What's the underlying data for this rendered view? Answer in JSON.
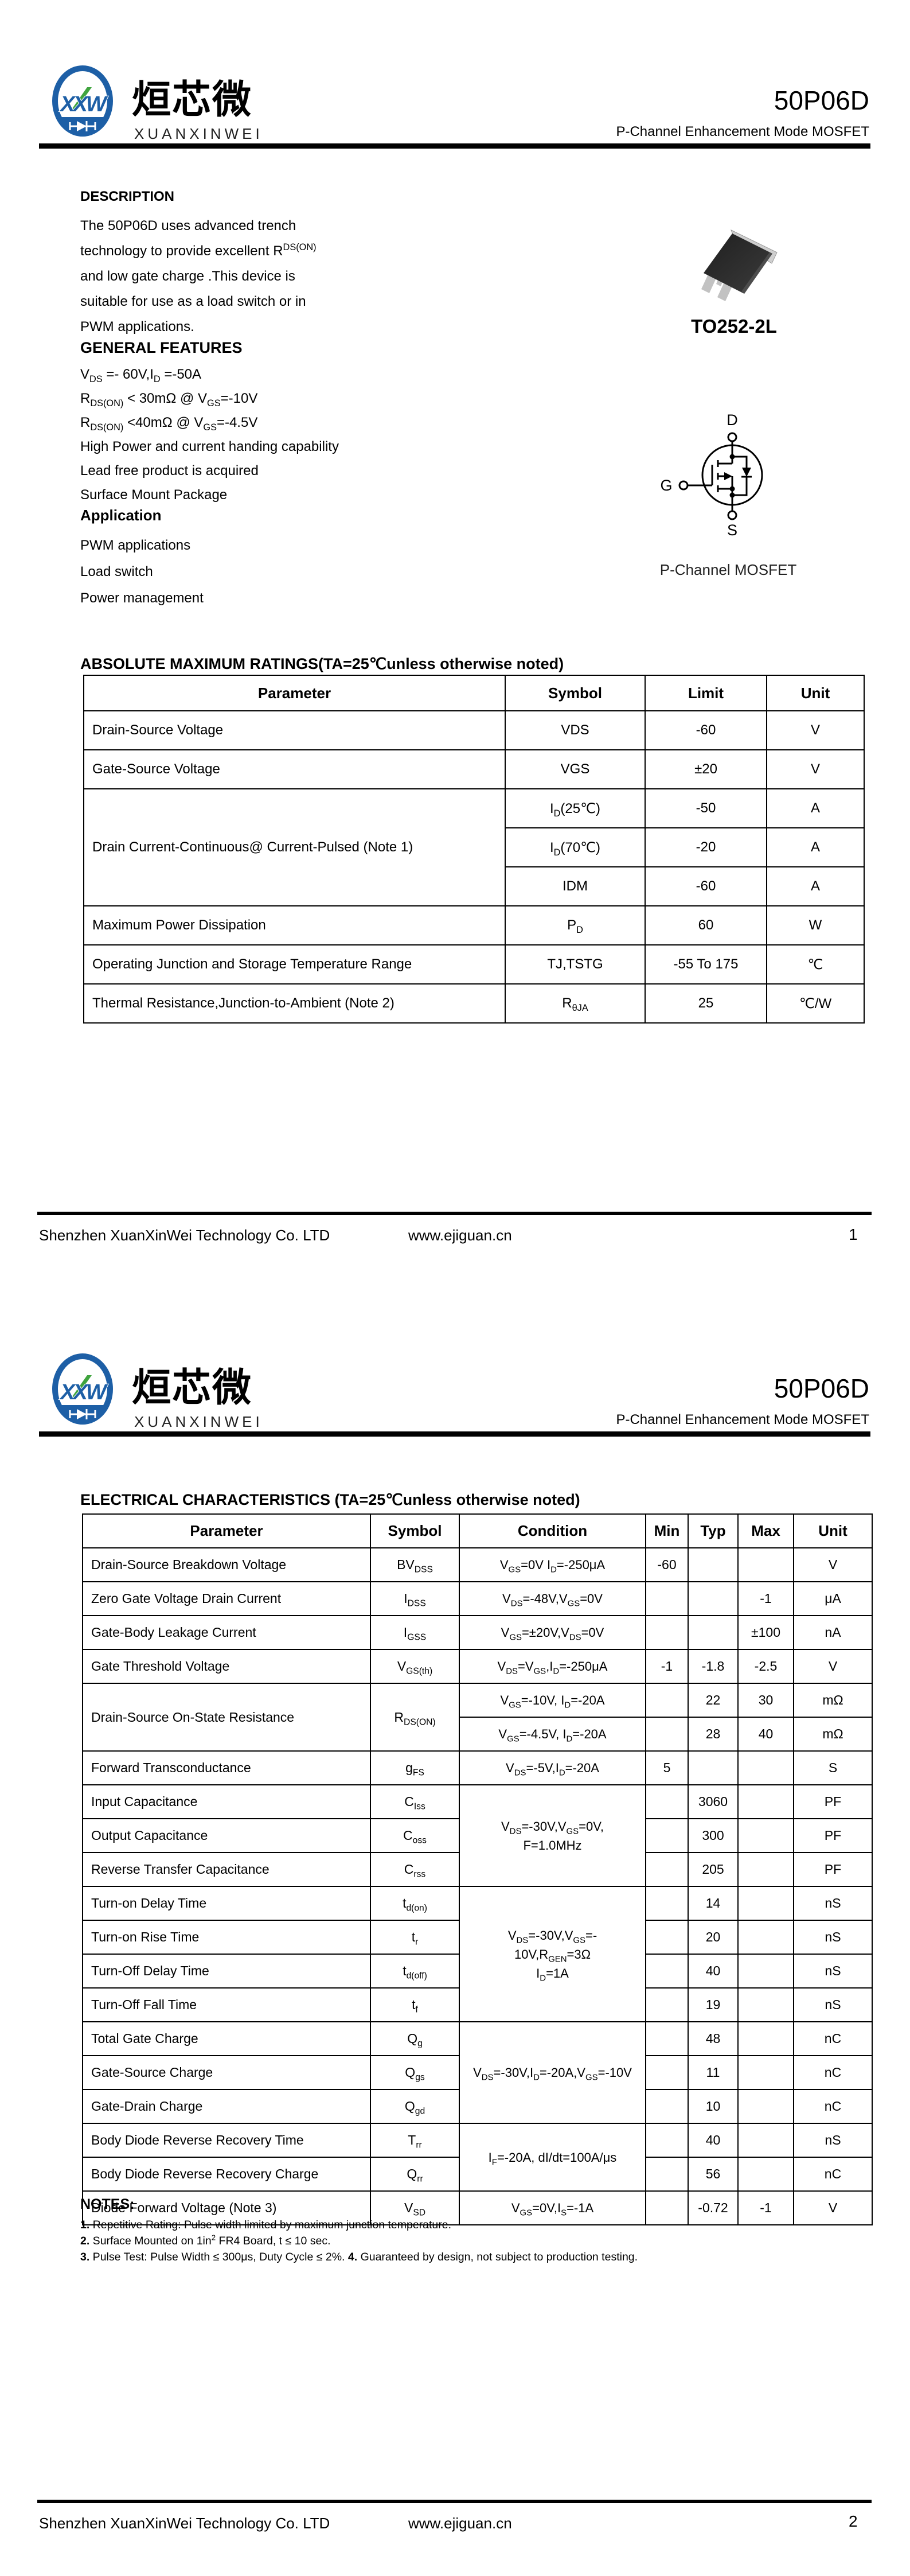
{
  "colors": {
    "logo_blue": "#1d5fa6",
    "logo_green": "#3fa43e",
    "text_black": "#000000"
  },
  "brand": {
    "logo_monogram": "XXW",
    "name_cn": "烜芯微",
    "name_en": "XUANXINWEI"
  },
  "doc": {
    "part_number": "50P06D",
    "subtitle": "P-Channel Enhancement Mode MOSFET"
  },
  "page1": {
    "description": {
      "title": "DESCRIPTION",
      "lines": [
        "The  50P06D uses advanced trench",
        "technology to provide excellent R^DS(ON)^",
        "and low gate charge .This device is",
        "suitable for use as a load switch or in",
        "PWM applications."
      ]
    },
    "general_features": {
      "title": "GENERAL FEATURES",
      "lines": [
        "V~DS~ =- 60V,I~D~ =-50A",
        "R~DS(ON)~ < 30mΩ @ V~GS~=-10V",
        "R~DS(ON)~ <40mΩ @ V~GS~=-4.5V",
        "High Power and current handing capability",
        "Lead free product is acquired",
        "Surface Mount Package"
      ]
    },
    "application": {
      "title": "Application",
      "lines": [
        "PWM applications",
        "Load switch",
        "Power management"
      ]
    },
    "package": {
      "name": "TO252-2L",
      "caption": "P-Channel MOSFET",
      "pin_d": "D",
      "pin_g": "G",
      "pin_s": "S"
    },
    "abs_max_ratings": {
      "title": "ABSOLUTE MAXIMUM RATINGS(TA=25℃unless otherwise noted)",
      "headers": [
        "Parameter",
        "Symbol",
        "Limit",
        "Unit"
      ],
      "rows": [
        {
          "parameter": "Drain-Source Voltage",
          "symbol": "VDS",
          "limit": "-60",
          "unit": "V"
        },
        {
          "parameter": "Gate-Source Voltage",
          "symbol": "VGS",
          "limit": "±20",
          "unit": "V"
        },
        {
          "parameter": "Drain Current-Continuous@ Current-Pulsed (Note 1)",
          "parameter_rowspan": 3,
          "symbol": "I~D~(25℃)",
          "limit": "-50",
          "unit": "A"
        },
        {
          "symbol": "I~D~(70℃)",
          "limit": "-20",
          "unit": "A"
        },
        {
          "symbol": "IDM",
          "limit": "-60",
          "unit": "A"
        },
        {
          "parameter": "Maximum Power Dissipation",
          "symbol": "P~D~",
          "limit": "60",
          "unit": "W"
        },
        {
          "parameter": "Operating Junction and Storage Temperature Range",
          "symbol": "TJ,TSTG",
          "limit": "-55 To 175",
          "unit": "℃"
        },
        {
          "parameter": "Thermal Resistance,Junction-to-Ambient (Note 2)",
          "symbol": "R~θJA~",
          "limit": "25",
          "unit": "℃/W"
        }
      ]
    },
    "footer": {
      "company": "Shenzhen XuanXinWei Technology Co. LTD",
      "website": "www.ejiguan.cn",
      "page_number": "1"
    }
  },
  "page2": {
    "electrical_characteristics": {
      "title": "ELECTRICAL CHARACTERISTICS (TA=25℃unless otherwise noted)",
      "headers": [
        "Parameter",
        "Symbol",
        "Condition",
        "Min",
        "Typ",
        "Max",
        "Unit"
      ],
      "rows": [
        {
          "parameter": "Drain-Source Breakdown Voltage",
          "symbol": "BV~DSS~",
          "condition": "V~GS~=0V I~D~=-250μA",
          "min": "-60",
          "typ": "",
          "max": "",
          "unit": "V"
        },
        {
          "parameter": "Zero Gate Voltage Drain Current",
          "symbol": "I~DSS~",
          "condition": "V~DS~=-48V,V~GS~=0V",
          "min": "",
          "typ": "",
          "max": "-1",
          "unit": "μA"
        },
        {
          "parameter": "Gate-Body Leakage Current",
          "symbol": "I~GSS~",
          "condition": "V~GS~=±20V,V~DS~=0V",
          "min": "",
          "typ": "",
          "max": "±100",
          "unit": "nA"
        },
        {
          "parameter": "Gate Threshold Voltage",
          "symbol": "V~GS(th)~",
          "condition": "V~DS~=V~GS~,I~D~=-250μA",
          "min": "-1",
          "typ": "-1.8",
          "max": "-2.5",
          "unit": "V"
        },
        {
          "parameter": "Drain-Source On-State Resistance",
          "parameter_rowspan": 2,
          "symbol": "R~DS(ON)~",
          "symbol_rowspan": 2,
          "condition": "V~GS~=-10V, I~D~=-20A",
          "min": "",
          "typ": "22",
          "max": "30",
          "unit": "mΩ"
        },
        {
          "condition": "V~GS~=-4.5V, I~D~=-20A",
          "min": "",
          "typ": "28",
          "max": "40",
          "unit": "mΩ"
        },
        {
          "parameter": "Forward Transconductance",
          "symbol": "g~FS~",
          "condition": "V~DS~=-5V,I~D~=-20A",
          "min": "5",
          "typ": "",
          "max": "",
          "unit": "S"
        },
        {
          "parameter": "Input Capacitance",
          "symbol": "C~Iss~",
          "condition": "V~DS~=-30V,V~GS~=0V,\nF=1.0MHz",
          "condition_rowspan": 3,
          "min": "",
          "typ": "3060",
          "max": "",
          "unit": "PF"
        },
        {
          "parameter": "Output Capacitance",
          "symbol": "C~oss~",
          "min": "",
          "typ": "300",
          "max": "",
          "unit": "PF"
        },
        {
          "parameter": "Reverse Transfer Capacitance",
          "symbol": "C~rss~",
          "min": "",
          "typ": "205",
          "max": "",
          "unit": "PF"
        },
        {
          "parameter": "Turn-on Delay Time",
          "symbol": "t~d(on)~",
          "condition": "V~DS~=-30V,V~GS~=-\n10V,R~GEN~=3Ω\nI~D~=1A",
          "condition_rowspan": 4,
          "min": "",
          "typ": "14",
          "max": "",
          "unit": "nS"
        },
        {
          "parameter": "Turn-on Rise Time",
          "symbol": "t~r~",
          "min": "",
          "typ": "20",
          "max": "",
          "unit": "nS"
        },
        {
          "parameter": "Turn-Off Delay Time",
          "symbol": "t~d(off)~",
          "min": "",
          "typ": "40",
          "max": "",
          "unit": "nS"
        },
        {
          "parameter": "Turn-Off Fall Time",
          "symbol": "t~f~",
          "min": "",
          "typ": "19",
          "max": "",
          "unit": "nS"
        },
        {
          "parameter": "Total Gate Charge",
          "symbol": "Q~g~",
          "condition": "V~DS~=-30V,I~D~=-20A,V~GS~=-10V",
          "condition_rowspan": 3,
          "min": "",
          "typ": "48",
          "max": "",
          "unit": "nC"
        },
        {
          "parameter": "Gate-Source Charge",
          "symbol": "Q~gs~",
          "min": "",
          "typ": "11",
          "max": "",
          "unit": "nC"
        },
        {
          "parameter": "Gate-Drain Charge",
          "symbol": "Q~gd~",
          "min": "",
          "typ": "10",
          "max": "",
          "unit": "nC"
        },
        {
          "parameter": "Body Diode Reverse Recovery Time",
          "symbol": "T~rr~",
          "condition": "I~F~=-20A, dI/dt=100A/μs",
          "condition_rowspan": 2,
          "min": "",
          "typ": "40",
          "max": "",
          "unit": "nS"
        },
        {
          "parameter": "Body Diode Reverse Recovery Charge",
          "symbol": "Q~rr~",
          "min": "",
          "typ": "56",
          "max": "",
          "unit": "nC"
        },
        {
          "parameter": "Diode Forward Voltage (Note 3)",
          "symbol": "V~SD~",
          "condition": "V~GS~=0V,I~S~=-1A",
          "min": "",
          "typ": "-0.72",
          "max": "-1",
          "unit": "V"
        }
      ]
    },
    "notes": {
      "title": "NOTES:",
      "lines": [
        "**1.** Repetitive Rating: Pulse width limited by maximum junction temperature.",
        "**2.** Surface Mounted on 1in^2^ FR4 Board, t ≤ 10 sec.",
        "**3.** Pulse Test: Pulse Width ≤ 300μs, Duty Cycle ≤ 2%. **4.** Guaranteed by design, not subject to production testing."
      ]
    },
    "footer": {
      "company": "Shenzhen XuanXinWei Technology Co. LTD",
      "website": "www.ejiguan.cn",
      "page_number": "2"
    }
  }
}
